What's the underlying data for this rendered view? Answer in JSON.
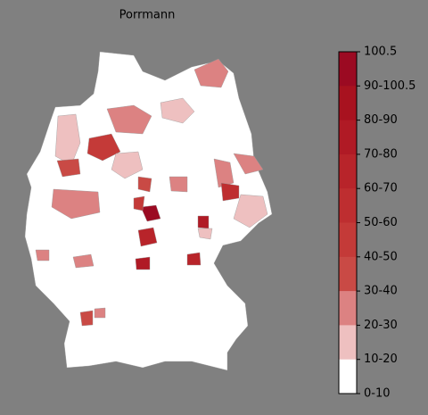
{
  "title": "Porrmann",
  "colorbar": {
    "labels": [
      "100.5",
      "90-100.5",
      "80-90",
      "70-80",
      "60-70",
      "50-60",
      "40-50",
      "30-40",
      "20-30",
      "10-20",
      "0-10"
    ],
    "colors": [
      "#9b0a22",
      "#a8121f",
      "#b01a25",
      "#b8242a",
      "#be2e30",
      "#c43a38",
      "#c94a45",
      "#dc8282",
      "#eec0c0",
      "#ffffff"
    ]
  }
}
